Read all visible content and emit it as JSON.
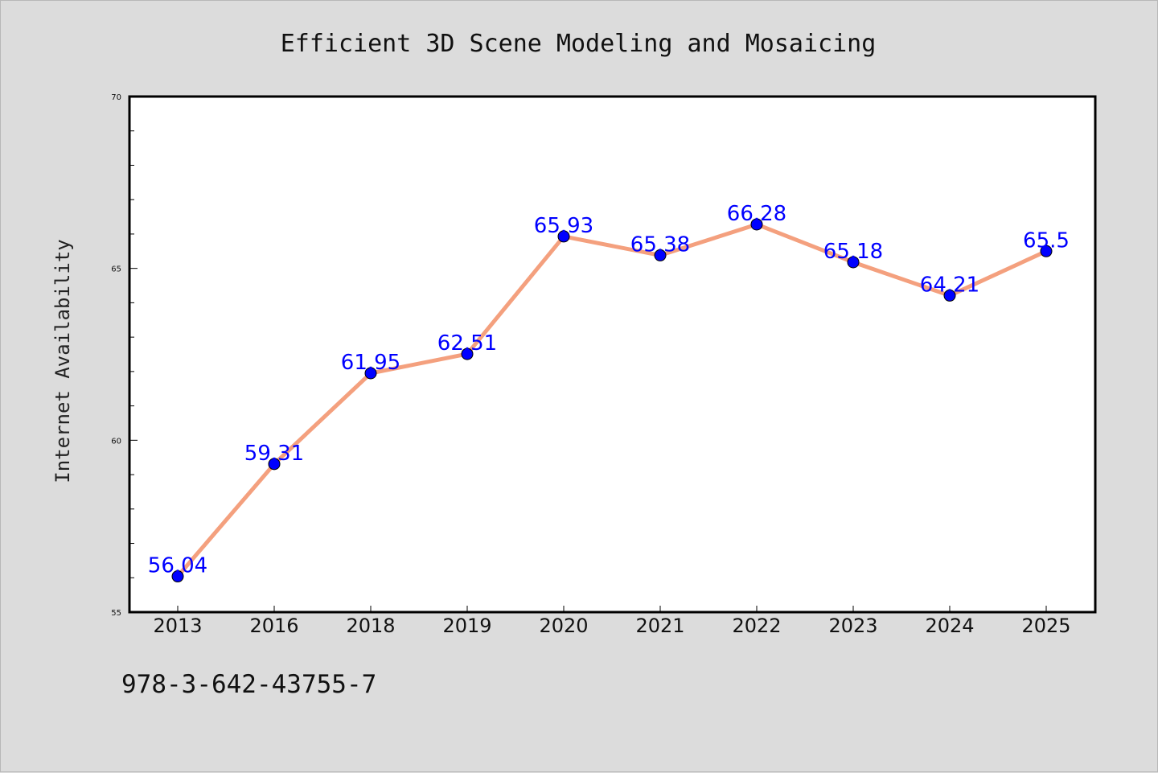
{
  "colors": {
    "background": "#dcdcdc",
    "plot_background": "#ffffff",
    "line": "#f4a07e",
    "marker": "#0000ff",
    "data_label": "#0000ff"
  },
  "footer": {
    "code": "978-3-642-43755-7"
  },
  "chart_data": {
    "type": "line",
    "title": "Efficient 3D Scene Modeling and Mosaicing",
    "ylabel": "Internet Availability",
    "xlabel": "",
    "categories": [
      "2013",
      "2016",
      "2018",
      "2019",
      "2020",
      "2021",
      "2022",
      "2023",
      "2024",
      "2025"
    ],
    "series": [
      {
        "values": [
          56.04,
          59.31,
          61.95,
          62.51,
          65.93,
          65.38,
          66.28,
          65.18,
          64.21,
          65.5
        ],
        "labels": [
          "56.04",
          "59.31",
          "61.95",
          "62.51",
          "65.93",
          "65.38",
          "66.28",
          "65.18",
          "64.21",
          "65.5"
        ]
      }
    ],
    "ylim": [
      55,
      70
    ],
    "yticks": [
      55,
      60,
      65,
      70
    ],
    "grid": false,
    "legend": "none"
  }
}
